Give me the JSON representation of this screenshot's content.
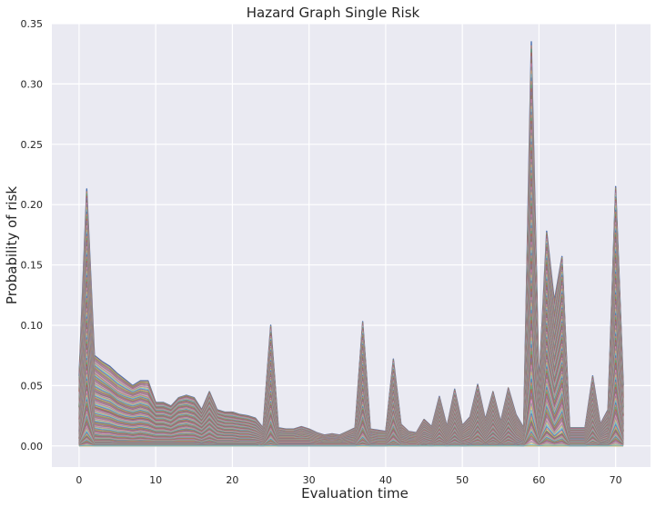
{
  "chart_data": {
    "type": "line",
    "title": "Hazard Graph Single Risk",
    "xlabel": "Evaluation time",
    "ylabel": "Probability of risk",
    "xlim": [
      -3.55,
      74.55
    ],
    "ylim": [
      -0.0175,
      0.35
    ],
    "x_ticks": [
      0,
      10,
      20,
      30,
      40,
      50,
      60,
      70
    ],
    "x_tick_labels": [
      "0",
      "10",
      "20",
      "30",
      "40",
      "50",
      "60",
      "70"
    ],
    "y_ticks": [
      0.0,
      0.05,
      0.1,
      0.15,
      0.2,
      0.25,
      0.3,
      0.35
    ],
    "y_tick_labels": [
      "0.00",
      "0.05",
      "0.10",
      "0.15",
      "0.20",
      "0.25",
      "0.30",
      "0.35"
    ],
    "grid": true,
    "legend": "none",
    "background": "#eaeaf2",
    "palette": [
      "#4c72b0",
      "#dd8452",
      "#55a868",
      "#c44e52",
      "#8172b3",
      "#937860",
      "#da8bc3",
      "#8c8c8c",
      "#ccb974",
      "#64b5cd"
    ],
    "x": [
      0,
      1,
      2,
      3,
      4,
      5,
      6,
      7,
      8,
      9,
      10,
      11,
      12,
      13,
      14,
      15,
      16,
      17,
      18,
      19,
      20,
      21,
      22,
      23,
      24,
      25,
      26,
      27,
      28,
      29,
      30,
      31,
      32,
      33,
      34,
      35,
      36,
      37,
      38,
      39,
      40,
      41,
      42,
      43,
      44,
      45,
      46,
      47,
      48,
      49,
      50,
      51,
      52,
      53,
      54,
      55,
      56,
      57,
      58,
      59,
      60,
      61,
      62,
      63,
      64,
      65,
      66,
      67,
      68,
      69,
      70,
      71
    ],
    "series": [
      {
        "values": [
          0.058,
          0.213,
          0.075,
          0.07,
          0.066,
          0.06,
          0.055,
          0.05,
          0.054,
          0.054,
          0.036,
          0.036,
          0.033,
          0.04,
          0.042,
          0.04,
          0.03,
          0.045,
          0.03,
          0.028,
          0.028,
          0.026,
          0.025,
          0.023,
          0.015,
          0.1,
          0.015,
          0.014,
          0.014,
          0.016,
          0.014,
          0.011,
          0.009,
          0.01,
          0.009,
          0.012,
          0.015,
          0.103,
          0.014,
          0.013,
          0.012,
          0.072,
          0.018,
          0.012,
          0.011,
          0.022,
          0.016,
          0.041,
          0.016,
          0.047,
          0.017,
          0.024,
          0.051,
          0.022,
          0.045,
          0.02,
          0.048,
          0.026,
          0.015,
          0.335,
          0.05,
          0.178,
          0.12,
          0.157,
          0.015,
          0.015,
          0.015,
          0.058,
          0.018,
          0.03,
          0.215,
          0.05
        ]
      },
      {
        "values": [
          0.045,
          0.18,
          0.06,
          0.055,
          0.05,
          0.045,
          0.042,
          0.04,
          0.042,
          0.04,
          0.03,
          0.03,
          0.028,
          0.034,
          0.035,
          0.033,
          0.025,
          0.038,
          0.025,
          0.023,
          0.022,
          0.021,
          0.02,
          0.018,
          0.012,
          0.09,
          0.012,
          0.011,
          0.011,
          0.013,
          0.011,
          0.009,
          0.007,
          0.008,
          0.007,
          0.01,
          0.012,
          0.095,
          0.011,
          0.01,
          0.01,
          0.065,
          0.014,
          0.01,
          0.009,
          0.018,
          0.013,
          0.036,
          0.013,
          0.04,
          0.014,
          0.02,
          0.044,
          0.018,
          0.038,
          0.017,
          0.041,
          0.021,
          0.012,
          0.283,
          0.04,
          0.16,
          0.1,
          0.145,
          0.012,
          0.012,
          0.012,
          0.05,
          0.015,
          0.025,
          0.2,
          0.04
        ]
      },
      {
        "values": [
          0.032,
          0.15,
          0.045,
          0.042,
          0.04,
          0.035,
          0.032,
          0.03,
          0.032,
          0.03,
          0.024,
          0.024,
          0.022,
          0.027,
          0.028,
          0.026,
          0.02,
          0.03,
          0.02,
          0.018,
          0.018,
          0.017,
          0.016,
          0.014,
          0.009,
          0.075,
          0.009,
          0.009,
          0.009,
          0.01,
          0.009,
          0.007,
          0.006,
          0.006,
          0.006,
          0.008,
          0.01,
          0.08,
          0.009,
          0.008,
          0.008,
          0.055,
          0.011,
          0.008,
          0.007,
          0.015,
          0.011,
          0.03,
          0.011,
          0.033,
          0.011,
          0.016,
          0.036,
          0.015,
          0.032,
          0.014,
          0.034,
          0.017,
          0.01,
          0.24,
          0.032,
          0.13,
          0.085,
          0.12,
          0.01,
          0.01,
          0.01,
          0.042,
          0.012,
          0.02,
          0.17,
          0.032
        ]
      },
      {
        "values": [
          0.022,
          0.12,
          0.032,
          0.03,
          0.028,
          0.025,
          0.023,
          0.022,
          0.023,
          0.022,
          0.018,
          0.018,
          0.016,
          0.02,
          0.021,
          0.019,
          0.015,
          0.022,
          0.015,
          0.013,
          0.013,
          0.012,
          0.012,
          0.01,
          0.007,
          0.06,
          0.007,
          0.007,
          0.007,
          0.008,
          0.007,
          0.005,
          0.004,
          0.005,
          0.004,
          0.006,
          0.007,
          0.065,
          0.007,
          0.006,
          0.006,
          0.045,
          0.008,
          0.006,
          0.005,
          0.011,
          0.008,
          0.024,
          0.008,
          0.026,
          0.008,
          0.012,
          0.028,
          0.011,
          0.025,
          0.01,
          0.027,
          0.013,
          0.007,
          0.2,
          0.025,
          0.11,
          0.07,
          0.1,
          0.008,
          0.008,
          0.008,
          0.034,
          0.009,
          0.015,
          0.14,
          0.025
        ]
      },
      {
        "values": [
          0.012,
          0.09,
          0.02,
          0.019,
          0.018,
          0.016,
          0.015,
          0.014,
          0.015,
          0.014,
          0.012,
          0.012,
          0.011,
          0.013,
          0.014,
          0.013,
          0.01,
          0.015,
          0.01,
          0.009,
          0.009,
          0.008,
          0.008,
          0.007,
          0.005,
          0.045,
          0.005,
          0.005,
          0.005,
          0.005,
          0.005,
          0.004,
          0.003,
          0.003,
          0.003,
          0.004,
          0.005,
          0.05,
          0.005,
          0.004,
          0.004,
          0.035,
          0.006,
          0.004,
          0.004,
          0.008,
          0.006,
          0.018,
          0.006,
          0.02,
          0.006,
          0.009,
          0.021,
          0.008,
          0.019,
          0.008,
          0.02,
          0.01,
          0.005,
          0.16,
          0.018,
          0.09,
          0.055,
          0.08,
          0.006,
          0.006,
          0.006,
          0.026,
          0.007,
          0.011,
          0.11,
          0.018
        ]
      },
      {
        "values": [
          0.006,
          0.06,
          0.01,
          0.009,
          0.009,
          0.008,
          0.008,
          0.007,
          0.008,
          0.007,
          0.006,
          0.006,
          0.006,
          0.007,
          0.007,
          0.007,
          0.005,
          0.008,
          0.005,
          0.005,
          0.005,
          0.004,
          0.004,
          0.004,
          0.003,
          0.03,
          0.003,
          0.003,
          0.003,
          0.003,
          0.003,
          0.002,
          0.002,
          0.002,
          0.002,
          0.002,
          0.003,
          0.035,
          0.003,
          0.002,
          0.002,
          0.025,
          0.003,
          0.002,
          0.002,
          0.005,
          0.003,
          0.012,
          0.003,
          0.013,
          0.003,
          0.005,
          0.014,
          0.005,
          0.012,
          0.005,
          0.013,
          0.006,
          0.003,
          0.12,
          0.012,
          0.07,
          0.04,
          0.06,
          0.004,
          0.004,
          0.004,
          0.018,
          0.005,
          0.007,
          0.08,
          0.012
        ]
      },
      {
        "values": [
          0.002,
          0.03,
          0.004,
          0.004,
          0.004,
          0.003,
          0.003,
          0.003,
          0.003,
          0.003,
          0.003,
          0.003,
          0.003,
          0.003,
          0.003,
          0.003,
          0.002,
          0.003,
          0.002,
          0.002,
          0.002,
          0.002,
          0.002,
          0.002,
          0.001,
          0.015,
          0.001,
          0.001,
          0.001,
          0.001,
          0.001,
          0.001,
          0.001,
          0.001,
          0.001,
          0.001,
          0.001,
          0.018,
          0.001,
          0.001,
          0.001,
          0.012,
          0.002,
          0.001,
          0.001,
          0.002,
          0.002,
          0.006,
          0.002,
          0.007,
          0.002,
          0.003,
          0.007,
          0.002,
          0.006,
          0.002,
          0.007,
          0.003,
          0.002,
          0.07,
          0.006,
          0.04,
          0.02,
          0.035,
          0.002,
          0.002,
          0.002,
          0.01,
          0.002,
          0.004,
          0.045,
          0.006
        ]
      },
      {
        "values": [
          0.001,
          0.008,
          0.001,
          0.001,
          0.001,
          0.001,
          0.001,
          0.001,
          0.001,
          0.001,
          0.001,
          0.001,
          0.001,
          0.001,
          0.001,
          0.001,
          0.001,
          0.001,
          0.001,
          0.001,
          0.001,
          0.001,
          0.001,
          0.001,
          0.0,
          0.004,
          0.0,
          0.0,
          0.0,
          0.0,
          0.0,
          0.0,
          0.0,
          0.0,
          0.0,
          0.0,
          0.0,
          0.005,
          0.0,
          0.0,
          0.0,
          0.003,
          0.0,
          0.0,
          0.0,
          0.001,
          0.0,
          0.002,
          0.0,
          0.002,
          0.0,
          0.001,
          0.002,
          0.001,
          0.002,
          0.001,
          0.002,
          0.001,
          0.0,
          0.02,
          0.002,
          0.012,
          0.006,
          0.01,
          0.0,
          0.0,
          0.0,
          0.003,
          0.001,
          0.001,
          0.013,
          0.002
        ]
      },
      {
        "values": [
          0.0,
          0.0,
          0.0,
          0.0,
          0.0,
          0.0,
          0.0,
          0.0,
          0.0,
          0.0,
          0.0,
          0.0,
          0.0,
          0.0,
          0.0,
          0.0,
          0.0,
          0.0,
          0.0,
          0.0,
          0.0,
          0.0,
          0.0,
          0.0,
          0.0,
          0.0,
          0.0,
          0.0,
          0.0,
          0.0,
          0.0,
          0.0,
          0.0,
          0.0,
          0.0,
          0.0,
          0.0,
          0.0,
          0.0,
          0.0,
          0.0,
          0.0,
          0.0,
          0.0,
          0.0,
          0.0,
          0.0,
          0.0,
          0.0,
          0.0,
          0.0,
          0.0,
          0.0,
          0.0,
          0.0,
          0.0,
          0.0,
          0.0,
          0.0,
          0.0,
          0.0,
          0.0,
          0.0,
          0.0,
          0.0,
          0.0,
          0.0,
          0.0,
          0.0,
          0.0,
          0.0,
          0.0
        ]
      }
    ]
  }
}
